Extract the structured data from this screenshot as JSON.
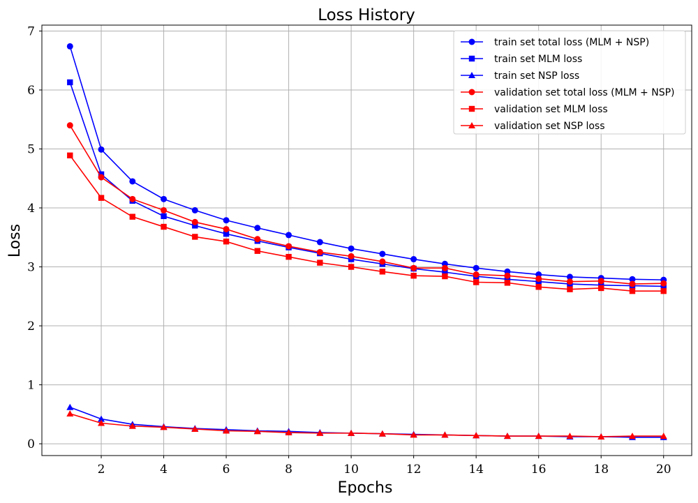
{
  "chart_data": {
    "type": "line",
    "title": "Loss History",
    "xlabel": "Epochs",
    "ylabel": "Loss",
    "x": [
      1,
      2,
      3,
      4,
      5,
      6,
      7,
      8,
      9,
      10,
      11,
      12,
      13,
      14,
      15,
      16,
      17,
      18,
      19,
      20
    ],
    "xlim": [
      0.1,
      20.9
    ],
    "ylim": [
      -0.2,
      7.1
    ],
    "xticks": [
      2,
      4,
      6,
      8,
      10,
      12,
      14,
      16,
      18,
      20
    ],
    "yticks": [
      0,
      1,
      2,
      3,
      4,
      5,
      6,
      7
    ],
    "grid": true,
    "legend": "top-right",
    "series": [
      {
        "name": "train set total loss (MLM + NSP)",
        "color": "#0000ff",
        "marker": "circle",
        "values": [
          6.74,
          4.99,
          4.45,
          4.15,
          3.96,
          3.79,
          3.66,
          3.54,
          3.42,
          3.31,
          3.22,
          3.13,
          3.05,
          2.98,
          2.92,
          2.87,
          2.83,
          2.81,
          2.79,
          2.78
        ]
      },
      {
        "name": "train set MLM loss",
        "color": "#0000ff",
        "marker": "square",
        "values": [
          6.13,
          4.57,
          4.12,
          3.86,
          3.7,
          3.56,
          3.44,
          3.33,
          3.23,
          3.13,
          3.05,
          2.97,
          2.91,
          2.84,
          2.79,
          2.75,
          2.71,
          2.69,
          2.68,
          2.67
        ]
      },
      {
        "name": "train set NSP loss",
        "color": "#0000ff",
        "marker": "triangle",
        "values": [
          0.62,
          0.42,
          0.33,
          0.29,
          0.26,
          0.24,
          0.22,
          0.21,
          0.19,
          0.18,
          0.17,
          0.16,
          0.15,
          0.14,
          0.13,
          0.13,
          0.12,
          0.12,
          0.11,
          0.11
        ]
      },
      {
        "name": "validation set total loss (MLM + NSP)",
        "color": "#ff0000",
        "marker": "circle",
        "values": [
          5.4,
          4.52,
          4.15,
          3.96,
          3.76,
          3.64,
          3.47,
          3.35,
          3.25,
          3.18,
          3.09,
          2.98,
          2.98,
          2.87,
          2.85,
          2.8,
          2.75,
          2.76,
          2.71,
          2.72
        ]
      },
      {
        "name": "validation set MLM loss",
        "color": "#ff0000",
        "marker": "square",
        "values": [
          4.89,
          4.17,
          3.85,
          3.68,
          3.51,
          3.43,
          3.27,
          3.17,
          3.07,
          3.0,
          2.92,
          2.85,
          2.84,
          2.74,
          2.73,
          2.66,
          2.62,
          2.64,
          2.59,
          2.59
        ]
      },
      {
        "name": "validation set NSP loss",
        "color": "#ff0000",
        "marker": "triangle",
        "values": [
          0.51,
          0.35,
          0.3,
          0.28,
          0.25,
          0.22,
          0.21,
          0.19,
          0.18,
          0.18,
          0.17,
          0.15,
          0.15,
          0.14,
          0.13,
          0.13,
          0.13,
          0.12,
          0.13,
          0.13
        ]
      }
    ]
  }
}
